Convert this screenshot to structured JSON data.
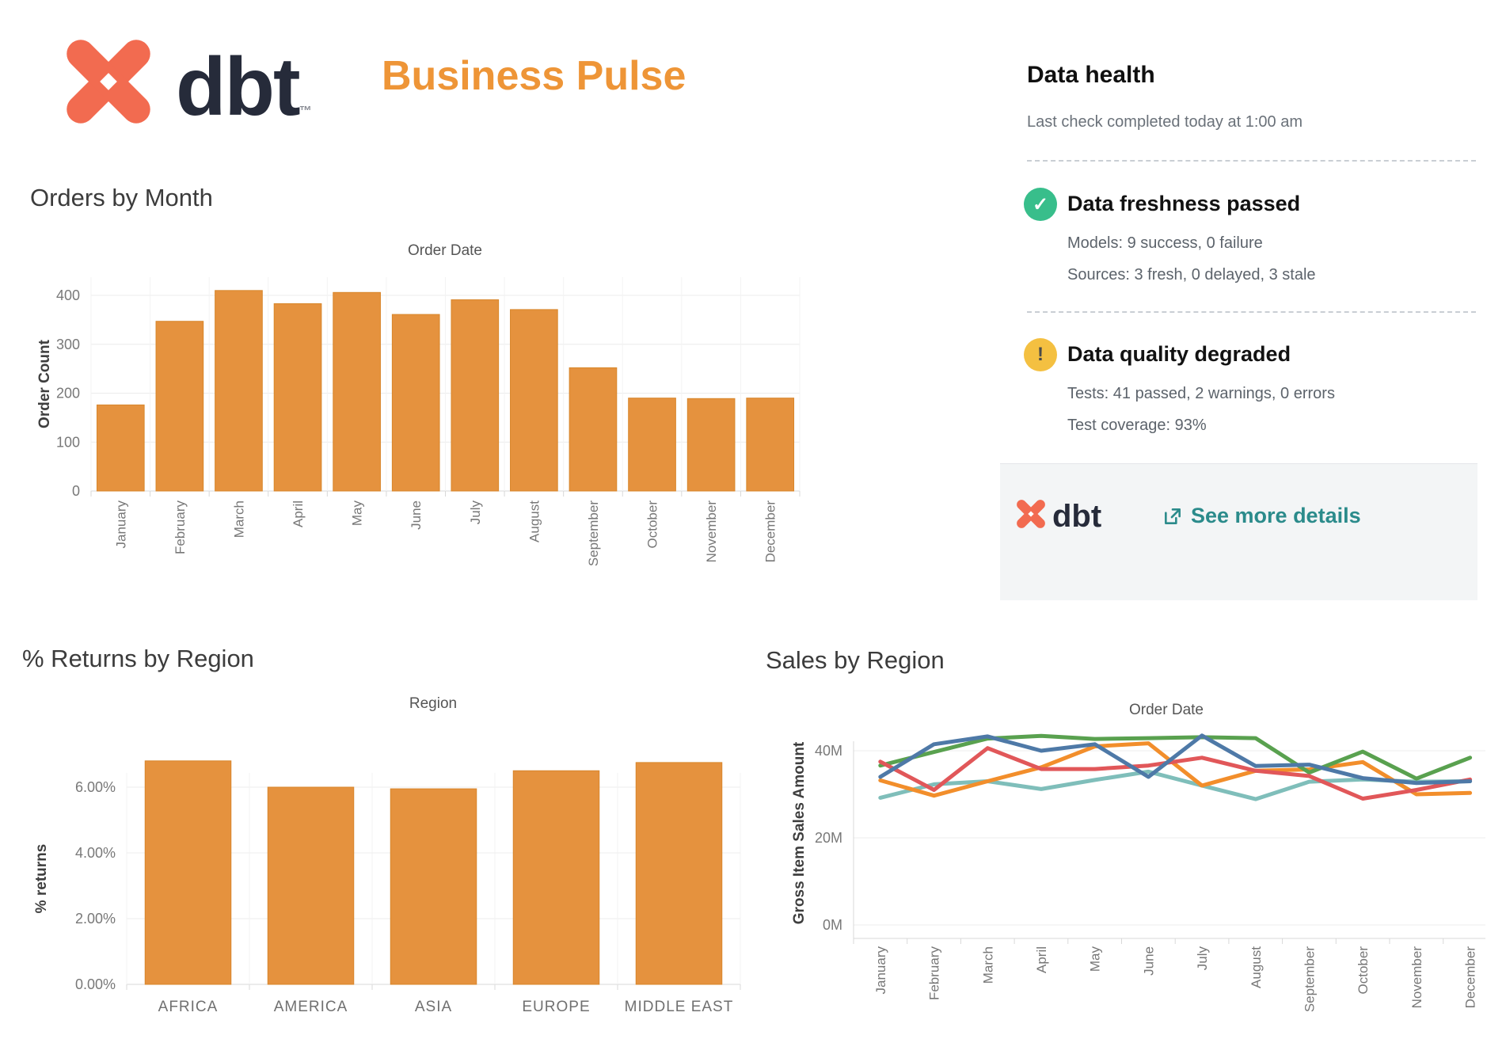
{
  "header": {
    "logo_text": "dbt",
    "trademark": "™",
    "title": "Business Pulse",
    "brand_coral": "#F26B50",
    "brand_navy": "#262B3A",
    "title_orange": "#EE9537"
  },
  "data_health": {
    "title": "Data health",
    "last_check": "Last check completed today at 1:00 am",
    "freshness": {
      "status_title": "Data freshness passed",
      "line1": "Models: 9 success, 0 failure",
      "line2": "Sources: 3 fresh, 0 delayed, 3 stale",
      "icon": "check-icon",
      "icon_color": "#38BE8B"
    },
    "quality": {
      "status_title": "Data quality degraded",
      "line1": "Tests: 41 passed, 2 warnings, 0 errors",
      "line2": "Test coverage: 93%",
      "icon": "warning-icon",
      "icon_color": "#F4C041"
    },
    "footer": {
      "logo_text": "dbt",
      "link_label": "See more details",
      "link_color": "#2B8B8B"
    }
  },
  "chart_data": [
    {
      "id": "orders_by_month",
      "type": "bar",
      "title": "Orders by Month",
      "column_header": "Order Date",
      "ylabel": "Order Count",
      "categories": [
        "January",
        "February",
        "March",
        "April",
        "May",
        "June",
        "July",
        "August",
        "September",
        "October",
        "November",
        "December"
      ],
      "values": [
        176,
        347,
        410,
        383,
        406,
        361,
        391,
        371,
        252,
        190,
        189,
        190
      ],
      "ytick_values": [
        0,
        100,
        200,
        300,
        400
      ],
      "ytick_labels": [
        "0",
        "100",
        "200",
        "300",
        "400"
      ],
      "ylim": [
        0,
        440
      ],
      "grid": true,
      "bar_color": "#E5923E",
      "bar_border": "#D8862B"
    },
    {
      "id": "returns_by_region",
      "type": "bar",
      "title": "% Returns by Region",
      "column_header": "Region",
      "ylabel": "% returns",
      "categories": [
        "AFRICA",
        "AMERICA",
        "ASIA",
        "EUROPE",
        "MIDDLE EAST"
      ],
      "values": [
        6.8,
        6.0,
        5.95,
        6.5,
        6.75
      ],
      "ytick_values": [
        0,
        2,
        4,
        6
      ],
      "ytick_labels": [
        "0.00%",
        "2.00%",
        "4.00%",
        "6.00%"
      ],
      "ylim": [
        0,
        7.6
      ],
      "grid": true,
      "bar_color": "#E5923E",
      "bar_border": "#D8862B"
    },
    {
      "id": "sales_by_region",
      "type": "line",
      "title": "Sales by Region",
      "column_header": "Order Date",
      "ylabel": "Gross Item Sales Amount",
      "x": [
        "January",
        "February",
        "March",
        "April",
        "May",
        "June",
        "July",
        "August",
        "September",
        "October",
        "November",
        "December"
      ],
      "series": [
        {
          "name": "teal",
          "color": "#7FBEBA",
          "values": [
            29.2,
            32.3,
            33.0,
            31.2,
            33.3,
            35.2,
            32.0,
            28.9,
            32.9,
            33.4,
            32.9,
            33.0
          ]
        },
        {
          "name": "orange",
          "color": "#F28E2B",
          "values": [
            33.2,
            29.7,
            33.0,
            36.2,
            41.0,
            41.7,
            32.0,
            35.4,
            35.7,
            37.4,
            30.0,
            30.3
          ]
        },
        {
          "name": "green",
          "color": "#59A14F",
          "values": [
            36.6,
            39.7,
            42.8,
            43.4,
            42.7,
            42.9,
            43.1,
            42.9,
            35.0,
            39.8,
            33.6,
            38.4
          ]
        },
        {
          "name": "red",
          "color": "#E15759",
          "values": [
            37.5,
            31.0,
            40.6,
            35.8,
            35.8,
            36.6,
            38.4,
            35.4,
            34.2,
            29.0,
            31.0,
            33.4
          ]
        },
        {
          "name": "blue",
          "color": "#4E79A7",
          "values": [
            34.0,
            41.5,
            43.3,
            40.0,
            41.5,
            34.0,
            43.5,
            36.5,
            36.8,
            33.7,
            32.6,
            33.0
          ]
        }
      ],
      "ytick_values": [
        0,
        20,
        40
      ],
      "ytick_labels": [
        "0M",
        "20M",
        "40M"
      ],
      "ylim": [
        0,
        47
      ],
      "grid": true,
      "legend": "none (not visible in view)"
    }
  ]
}
